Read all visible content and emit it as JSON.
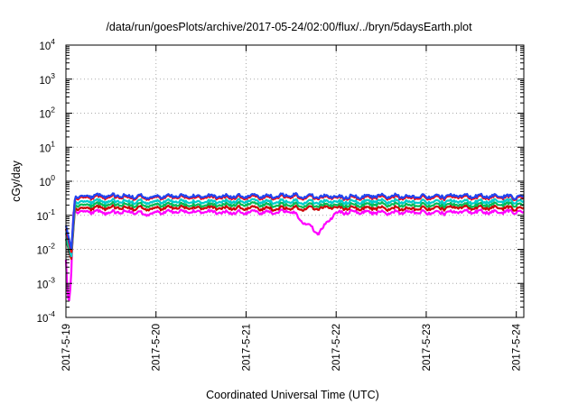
{
  "chart_data": {
    "type": "line",
    "title": "/data/run/goesPlots/archive/2017-05-24/02:00/flux/../bryn/5daysEarth.plot",
    "xlabel": "Coordinated Universal Time (UTC)",
    "ylabel": "cGy/day",
    "y_scale": "log",
    "ylim": [
      0.0001,
      10000
    ],
    "y_ticks": [
      {
        "value": 0.0001,
        "base": "10",
        "exp": "-4"
      },
      {
        "value": 0.001,
        "base": "10",
        "exp": "-3"
      },
      {
        "value": 0.01,
        "base": "10",
        "exp": "-2"
      },
      {
        "value": 0.1,
        "base": "10",
        "exp": "-1"
      },
      {
        "value": 1,
        "base": "10",
        "exp": "0"
      },
      {
        "value": 10,
        "base": "10",
        "exp": "1"
      },
      {
        "value": 100,
        "base": "10",
        "exp": "2"
      },
      {
        "value": 1000,
        "base": "10",
        "exp": "3"
      },
      {
        "value": 10000,
        "base": "10",
        "exp": "4"
      }
    ],
    "xlim": [
      "2017-05-19T00:00",
      "2017-05-24T02:00"
    ],
    "x_ticks": [
      "2017-5-19",
      "2017-5-20",
      "2017-5-21",
      "2017-5-22",
      "2017-5-23",
      "2017-5-24"
    ],
    "grid": true,
    "legend": "none",
    "series": [
      {
        "color": "#ff00ff",
        "base": 0.12,
        "x_days": [
          0.0,
          0.02,
          0.04,
          0.06,
          0.08,
          0.1,
          0.2,
          0.5,
          0.75,
          0.85,
          1.0,
          1.5,
          1.8,
          2.0,
          2.5,
          2.8,
          3.0,
          3.25,
          3.4,
          3.65,
          3.8,
          4.0,
          4.3,
          4.5,
          4.8,
          5.0,
          5.083
        ],
        "values": [
          0.005,
          0.0004,
          0.0003,
          0.002,
          0.12,
          0.13,
          0.13,
          0.12,
          0.13,
          0.11,
          0.12,
          0.13,
          0.12,
          0.12,
          0.13,
          0.03,
          0.12,
          0.13,
          0.12,
          0.12,
          0.13,
          0.12,
          0.12,
          0.13,
          0.12,
          0.13,
          0.12
        ]
      },
      {
        "color": "#cc0000",
        "base": 0.16,
        "x_days": [
          0.0,
          0.06,
          0.1,
          0.5,
          1.0,
          1.5,
          2.0,
          2.5,
          3.0,
          3.5,
          4.0,
          4.5,
          5.0,
          5.083
        ],
        "values": [
          0.02,
          0.005,
          0.16,
          0.17,
          0.16,
          0.17,
          0.16,
          0.16,
          0.17,
          0.16,
          0.16,
          0.17,
          0.16,
          0.16
        ]
      },
      {
        "color": "#00bb55",
        "base": 0.2,
        "x_days": [
          0.0,
          0.06,
          0.1,
          0.5,
          1.0,
          1.5,
          2.0,
          2.5,
          3.0,
          3.5,
          4.0,
          4.5,
          5.0,
          5.083
        ],
        "values": [
          0.02,
          0.006,
          0.2,
          0.21,
          0.2,
          0.2,
          0.21,
          0.2,
          0.2,
          0.21,
          0.2,
          0.2,
          0.21,
          0.2
        ]
      },
      {
        "color": "#00cccc",
        "base": 0.25,
        "x_days": [
          0.0,
          0.06,
          0.1,
          0.5,
          1.0,
          1.5,
          2.0,
          2.5,
          3.0,
          3.5,
          4.0,
          4.5,
          5.0,
          5.083
        ],
        "values": [
          0.03,
          0.006,
          0.25,
          0.26,
          0.25,
          0.25,
          0.26,
          0.25,
          0.25,
          0.26,
          0.25,
          0.25,
          0.26,
          0.25
        ]
      },
      {
        "color": "#ff0000",
        "base": 0.33,
        "x_days": [
          0.0,
          0.06,
          0.1,
          0.5,
          1.0,
          1.5,
          2.0,
          2.5,
          3.0,
          3.5,
          4.0,
          4.5,
          5.0,
          5.083
        ],
        "values": [
          0.04,
          0.008,
          0.33,
          0.35,
          0.33,
          0.34,
          0.33,
          0.35,
          0.33,
          0.34,
          0.33,
          0.34,
          0.33,
          0.33
        ]
      },
      {
        "color": "#2244ee",
        "base": 0.35,
        "x_days": [
          0.0,
          0.06,
          0.1,
          0.5,
          1.0,
          1.5,
          2.0,
          2.5,
          3.0,
          3.5,
          4.0,
          4.5,
          5.0,
          5.083
        ],
        "values": [
          0.05,
          0.01,
          0.36,
          0.38,
          0.35,
          0.37,
          0.36,
          0.38,
          0.35,
          0.37,
          0.36,
          0.37,
          0.35,
          0.36
        ]
      }
    ]
  }
}
